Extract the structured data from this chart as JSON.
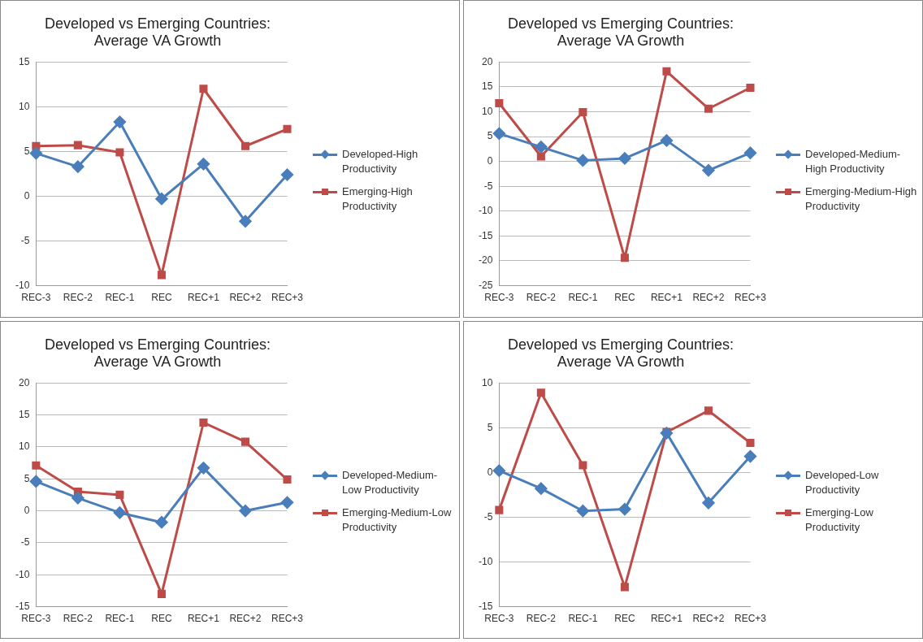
{
  "chart_data": [
    {
      "type": "line",
      "title": "Developed vs Emerging Countries:\nAverage VA Growth",
      "categories": [
        "REC-3",
        "REC-2",
        "REC-1",
        "REC",
        "REC+1",
        "REC+2",
        "REC+3"
      ],
      "ylim": [
        -10,
        15
      ],
      "yticks": [
        -10,
        -5,
        0,
        5,
        10,
        15
      ],
      "grid": "y",
      "legend": "right",
      "series": [
        {
          "name": "Developed-High Productivity",
          "color": "#4a7ebb",
          "marker": "diamond",
          "values": [
            4.8,
            3.3,
            8.3,
            -0.3,
            3.6,
            -2.8,
            2.4
          ]
        },
        {
          "name": "Emerging-High Productivity",
          "color": "#be4b48",
          "marker": "square",
          "values": [
            5.6,
            5.7,
            4.9,
            -8.8,
            12.0,
            5.6,
            7.5
          ]
        }
      ]
    },
    {
      "type": "line",
      "title": "Developed vs Emerging Countries:\nAverage VA Growth",
      "categories": [
        "REC-3",
        "REC-2",
        "REC-1",
        "REC",
        "REC+1",
        "REC+2",
        "REC+3"
      ],
      "ylim": [
        -25,
        20
      ],
      "yticks": [
        -25,
        -20,
        -15,
        -10,
        -5,
        0,
        5,
        10,
        15,
        20
      ],
      "grid": "y",
      "legend": "right",
      "series": [
        {
          "name": "Developed-Medium-High Productivity",
          "color": "#4a7ebb",
          "marker": "diamond",
          "values": [
            5.6,
            2.9,
            0.2,
            0.6,
            4.2,
            -1.8,
            1.7
          ]
        },
        {
          "name": "Emerging-Medium-High Productivity",
          "color": "#be4b48",
          "marker": "square",
          "values": [
            11.7,
            1.0,
            9.9,
            -19.4,
            18.1,
            10.6,
            14.8
          ]
        }
      ]
    },
    {
      "type": "line",
      "title": "Developed vs Emerging Countries:\nAverage VA Growth",
      "categories": [
        "REC-3",
        "REC-2",
        "REC-1",
        "REC",
        "REC+1",
        "REC+2",
        "REC+3"
      ],
      "ylim": [
        -15,
        20
      ],
      "yticks": [
        -15,
        -10,
        -5,
        0,
        5,
        10,
        15,
        20
      ],
      "grid": "y",
      "legend": "right",
      "series": [
        {
          "name": "Developed-Medium-Low Productivity",
          "color": "#4a7ebb",
          "marker": "diamond",
          "values": [
            4.6,
            2.0,
            -0.3,
            -1.8,
            6.7,
            0,
            1.3
          ]
        },
        {
          "name": "Emerging-Medium-Low Productivity",
          "color": "#be4b48",
          "marker": "square",
          "values": [
            7.1,
            3.0,
            2.5,
            -13.0,
            13.8,
            10.8,
            4.9
          ]
        }
      ]
    },
    {
      "type": "line",
      "title": "Developed vs Emerging Countries:\nAverage VA Growth",
      "categories": [
        "REC-3",
        "REC-2",
        "REC-1",
        "REC",
        "REC+1",
        "REC+2",
        "REC+3"
      ],
      "ylim": [
        -15,
        10
      ],
      "yticks": [
        -15,
        -10,
        -5,
        0,
        5,
        10
      ],
      "grid": "y",
      "legend": "right",
      "series": [
        {
          "name": "Developed-Low Productivity",
          "color": "#4a7ebb",
          "marker": "diamond",
          "values": [
            0.2,
            -1.8,
            -4.3,
            -4.1,
            4.4,
            -3.4,
            1.8
          ]
        },
        {
          "name": "Emerging-Low Productivity",
          "color": "#be4b48",
          "marker": "square",
          "values": [
            -4.2,
            8.9,
            0.8,
            -12.8,
            4.5,
            6.9,
            3.3
          ]
        }
      ]
    }
  ]
}
